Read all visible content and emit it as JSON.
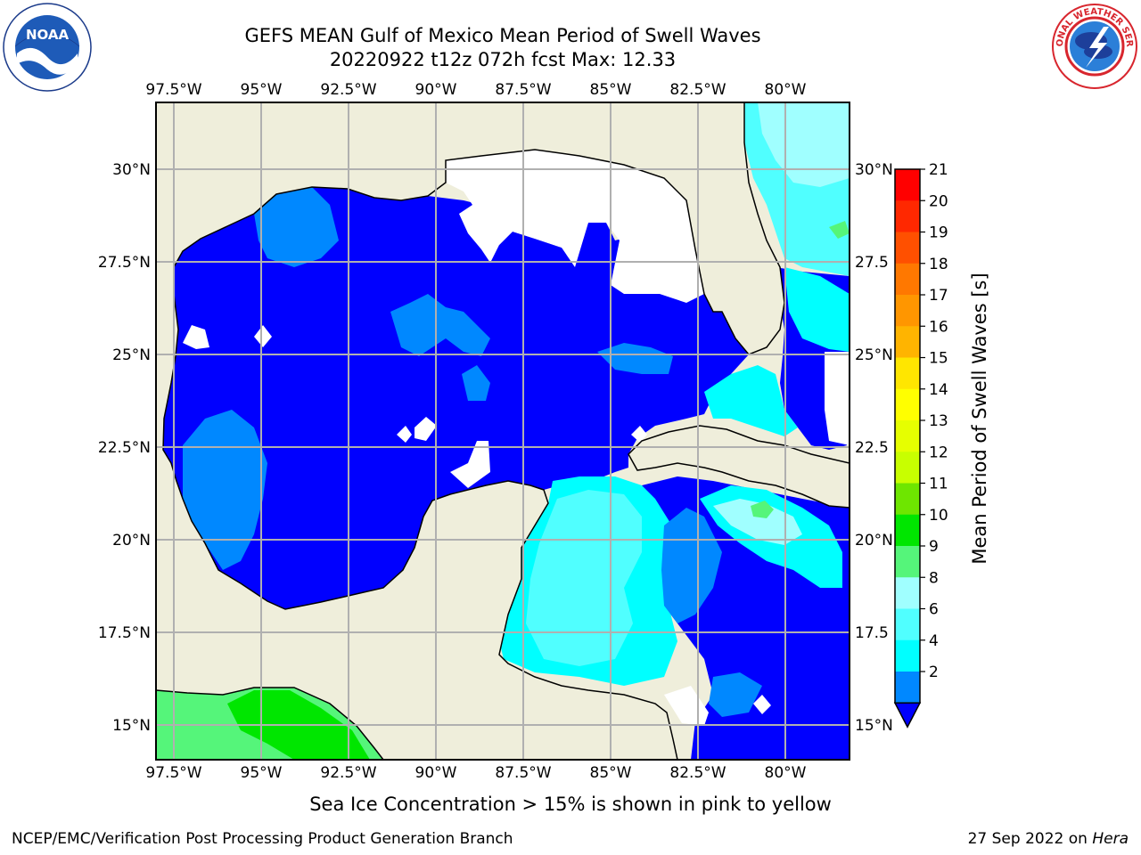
{
  "title_line1": "GEFS MEAN Gulf of Mexico Mean Period of Swell Waves",
  "title_line2": "20220922 t12z 072h fcst   Max: 12.33",
  "lon_ticks": [
    "97.5°W",
    "95°W",
    "92.5°W",
    "90°W",
    "87.5°W",
    "85°W",
    "82.5°W",
    "80°W"
  ],
  "lat_ticks_left": [
    "30°N",
    "27.5°N",
    "25°N",
    "22.5°N",
    "20°N",
    "17.5°N",
    "15°N"
  ],
  "lat_ticks_right": [
    "30°N",
    "27.5",
    "25°N",
    "22.5",
    "20°N",
    "17.5",
    "15°N"
  ],
  "colorbar": {
    "label": "Mean Period of Swell Waves [s]",
    "ticks": [
      "21",
      "20",
      "19",
      "18",
      "17",
      "16",
      "15",
      "14",
      "13",
      "12",
      "11",
      "10",
      "9",
      "8",
      "6",
      "4",
      "2"
    ],
    "colors": [
      "#ff0000",
      "#ff2800",
      "#ff5000",
      "#ff7800",
      "#ff9600",
      "#ffb400",
      "#ffe600",
      "#ffff00",
      "#e6ff00",
      "#c8ff00",
      "#6ee600",
      "#00e600",
      "#55f57a",
      "#a0ffff",
      "#50ffff",
      "#00ffff",
      "#0088ff"
    ],
    "extend_color": "#0000ff"
  },
  "map_colors": {
    "land": "#efeedb",
    "blue_2": "#0000ff",
    "blue_4": "#0088ff",
    "cyan_6": "#00ffff",
    "cyan_8": "#50ffff",
    "cyan_9": "#a0ffff",
    "green_10": "#55f57a",
    "green_11": "#00e600",
    "white_missing": "#ffffff"
  },
  "note": "Sea Ice Concentration > 15% is shown in pink to yellow",
  "footer_left": "NCEP/EMC/Verification Post Processing Product Generation Branch",
  "footer_right_text": "27 Sep 2022 on ",
  "footer_right_italic": "Hera",
  "logo_noaa_text": "NOAA",
  "logo_nws_text": "NATIONAL WEATHER SERVICE"
}
